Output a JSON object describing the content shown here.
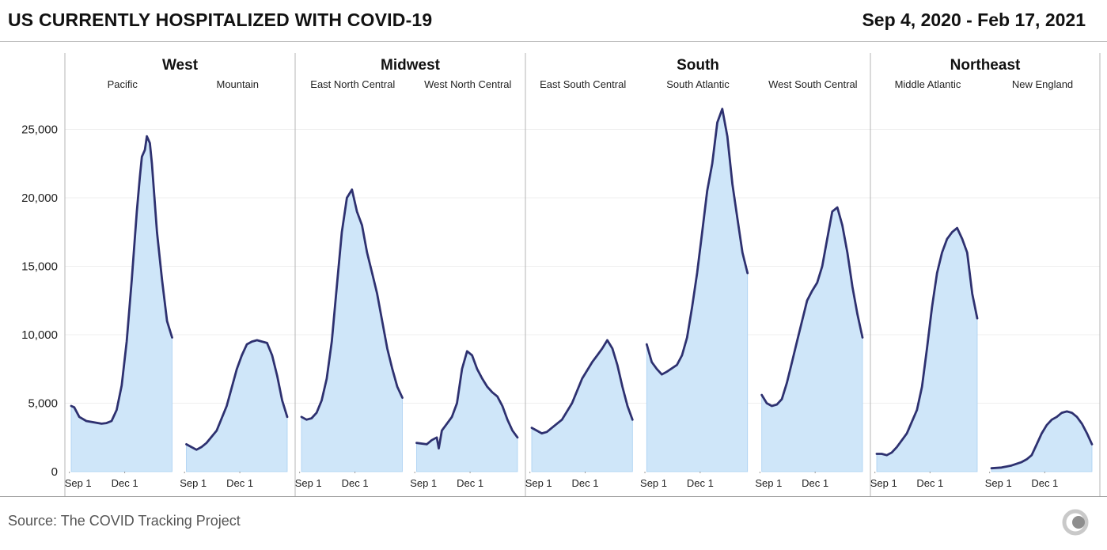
{
  "header": {
    "title": "US CURRENTLY HOSPITALIZED WITH COVID-19",
    "date_range": "Sep 4, 2020 - Feb 17, 2021"
  },
  "footer": {
    "source": "Source: The COVID Tracking Project",
    "logo": "covid-tracking-project-logo"
  },
  "colors": {
    "line": "#2e3170",
    "fill": "#cfe6f9",
    "fill_edge": "#a9d0f2",
    "divider": "#b5b5b5",
    "gridline": "#efefef"
  },
  "chart_data": {
    "type": "area",
    "ylim": [
      0,
      27000
    ],
    "y_ticks": [
      0,
      5000,
      10000,
      15000,
      20000,
      25000
    ],
    "y_tick_labels": [
      "0",
      "5,000",
      "10,000",
      "15,000",
      "20,000",
      "25,000"
    ],
    "x_range": [
      "2020-09-04",
      "2021-02-17"
    ],
    "x_tick_labels": [
      "Sep 1",
      "Dec 1"
    ],
    "regions": [
      {
        "name": "West",
        "divisions": [
          {
            "name": "Pacific",
            "points": [
              [
                0,
                4800
              ],
              [
                0.03,
                4700
              ],
              [
                0.08,
                4000
              ],
              [
                0.15,
                3700
              ],
              [
                0.3,
                3500
              ],
              [
                0.35,
                3550
              ],
              [
                0.4,
                3700
              ],
              [
                0.45,
                4500
              ],
              [
                0.5,
                6300
              ],
              [
                0.55,
                9500
              ],
              [
                0.6,
                14000
              ],
              [
                0.65,
                19000
              ],
              [
                0.68,
                21500
              ],
              [
                0.7,
                23000
              ],
              [
                0.73,
                23500
              ],
              [
                0.75,
                24500
              ],
              [
                0.78,
                24000
              ],
              [
                0.8,
                22500
              ],
              [
                0.85,
                17500
              ],
              [
                0.9,
                14000
              ],
              [
                0.95,
                11000
              ],
              [
                1,
                9800
              ]
            ]
          },
          {
            "name": "Mountain",
            "points": [
              [
                0,
                2000
              ],
              [
                0.05,
                1800
              ],
              [
                0.1,
                1600
              ],
              [
                0.15,
                1800
              ],
              [
                0.2,
                2100
              ],
              [
                0.3,
                3000
              ],
              [
                0.4,
                4800
              ],
              [
                0.5,
                7500
              ],
              [
                0.55,
                8500
              ],
              [
                0.6,
                9300
              ],
              [
                0.65,
                9500
              ],
              [
                0.7,
                9600
              ],
              [
                0.75,
                9500
              ],
              [
                0.8,
                9400
              ],
              [
                0.85,
                8500
              ],
              [
                0.9,
                7000
              ],
              [
                0.95,
                5200
              ],
              [
                1,
                4000
              ]
            ]
          }
        ]
      },
      {
        "name": "Midwest",
        "divisions": [
          {
            "name": "East North Central",
            "points": [
              [
                0,
                4000
              ],
              [
                0.05,
                3800
              ],
              [
                0.1,
                3900
              ],
              [
                0.15,
                4300
              ],
              [
                0.2,
                5200
              ],
              [
                0.25,
                6800
              ],
              [
                0.3,
                9500
              ],
              [
                0.35,
                13500
              ],
              [
                0.4,
                17500
              ],
              [
                0.45,
                20000
              ],
              [
                0.5,
                20600
              ],
              [
                0.55,
                19000
              ],
              [
                0.6,
                18000
              ],
              [
                0.65,
                16000
              ],
              [
                0.7,
                14500
              ],
              [
                0.75,
                13000
              ],
              [
                0.8,
                11000
              ],
              [
                0.85,
                9000
              ],
              [
                0.9,
                7500
              ],
              [
                0.95,
                6200
              ],
              [
                1,
                5400
              ]
            ]
          },
          {
            "name": "West North Central",
            "points": [
              [
                0,
                2100
              ],
              [
                0.1,
                2000
              ],
              [
                0.15,
                2300
              ],
              [
                0.2,
                2500
              ],
              [
                0.22,
                1700
              ],
              [
                0.25,
                3000
              ],
              [
                0.3,
                3500
              ],
              [
                0.35,
                4000
              ],
              [
                0.4,
                5000
              ],
              [
                0.45,
                7500
              ],
              [
                0.5,
                8800
              ],
              [
                0.55,
                8500
              ],
              [
                0.6,
                7500
              ],
              [
                0.65,
                6800
              ],
              [
                0.7,
                6200
              ],
              [
                0.75,
                5800
              ],
              [
                0.8,
                5500
              ],
              [
                0.85,
                4800
              ],
              [
                0.9,
                3800
              ],
              [
                0.95,
                3000
              ],
              [
                1,
                2500
              ]
            ]
          }
        ]
      },
      {
        "name": "South",
        "divisions": [
          {
            "name": "East South Central",
            "points": [
              [
                0,
                3200
              ],
              [
                0.05,
                3000
              ],
              [
                0.1,
                2800
              ],
              [
                0.15,
                2900
              ],
              [
                0.2,
                3200
              ],
              [
                0.3,
                3800
              ],
              [
                0.4,
                5000
              ],
              [
                0.5,
                6800
              ],
              [
                0.6,
                8000
              ],
              [
                0.65,
                8500
              ],
              [
                0.7,
                9000
              ],
              [
                0.75,
                9600
              ],
              [
                0.8,
                9000
              ],
              [
                0.85,
                7800
              ],
              [
                0.9,
                6200
              ],
              [
                0.95,
                4800
              ],
              [
                1,
                3800
              ]
            ]
          },
          {
            "name": "South Atlantic",
            "points": [
              [
                0,
                9300
              ],
              [
                0.05,
                8000
              ],
              [
                0.1,
                7500
              ],
              [
                0.15,
                7100
              ],
              [
                0.2,
                7300
              ],
              [
                0.3,
                7800
              ],
              [
                0.35,
                8500
              ],
              [
                0.4,
                9800
              ],
              [
                0.45,
                12000
              ],
              [
                0.5,
                14500
              ],
              [
                0.55,
                17500
              ],
              [
                0.6,
                20500
              ],
              [
                0.65,
                22500
              ],
              [
                0.7,
                25500
              ],
              [
                0.75,
                26500
              ],
              [
                0.8,
                24500
              ],
              [
                0.85,
                21000
              ],
              [
                0.9,
                18500
              ],
              [
                0.95,
                16000
              ],
              [
                1,
                14500
              ]
            ]
          },
          {
            "name": "West South Central",
            "points": [
              [
                0,
                5600
              ],
              [
                0.05,
                5000
              ],
              [
                0.1,
                4800
              ],
              [
                0.15,
                4900
              ],
              [
                0.2,
                5300
              ],
              [
                0.25,
                6500
              ],
              [
                0.3,
                8000
              ],
              [
                0.35,
                9500
              ],
              [
                0.4,
                11000
              ],
              [
                0.45,
                12500
              ],
              [
                0.5,
                13200
              ],
              [
                0.55,
                13800
              ],
              [
                0.6,
                15000
              ],
              [
                0.65,
                17000
              ],
              [
                0.7,
                19000
              ],
              [
                0.75,
                19300
              ],
              [
                0.8,
                18000
              ],
              [
                0.85,
                16000
              ],
              [
                0.9,
                13500
              ],
              [
                0.95,
                11500
              ],
              [
                1,
                9800
              ]
            ]
          }
        ]
      },
      {
        "name": "Northeast",
        "divisions": [
          {
            "name": "Middle Atlantic",
            "points": [
              [
                0,
                1300
              ],
              [
                0.05,
                1300
              ],
              [
                0.1,
                1200
              ],
              [
                0.15,
                1400
              ],
              [
                0.2,
                1800
              ],
              [
                0.3,
                2800
              ],
              [
                0.4,
                4500
              ],
              [
                0.45,
                6200
              ],
              [
                0.5,
                9000
              ],
              [
                0.55,
                12000
              ],
              [
                0.6,
                14500
              ],
              [
                0.65,
                16000
              ],
              [
                0.7,
                17000
              ],
              [
                0.75,
                17500
              ],
              [
                0.8,
                17800
              ],
              [
                0.85,
                17000
              ],
              [
                0.9,
                16000
              ],
              [
                0.95,
                13000
              ],
              [
                1,
                11200
              ]
            ]
          },
          {
            "name": "New England",
            "points": [
              [
                0,
                250
              ],
              [
                0.1,
                300
              ],
              [
                0.2,
                450
              ],
              [
                0.3,
                700
              ],
              [
                0.35,
                900
              ],
              [
                0.4,
                1200
              ],
              [
                0.45,
                2000
              ],
              [
                0.5,
                2800
              ],
              [
                0.55,
                3400
              ],
              [
                0.6,
                3800
              ],
              [
                0.65,
                4000
              ],
              [
                0.7,
                4300
              ],
              [
                0.75,
                4400
              ],
              [
                0.8,
                4300
              ],
              [
                0.85,
                4000
              ],
              [
                0.9,
                3500
              ],
              [
                0.95,
                2800
              ],
              [
                1,
                2000
              ]
            ]
          }
        ]
      }
    ]
  }
}
